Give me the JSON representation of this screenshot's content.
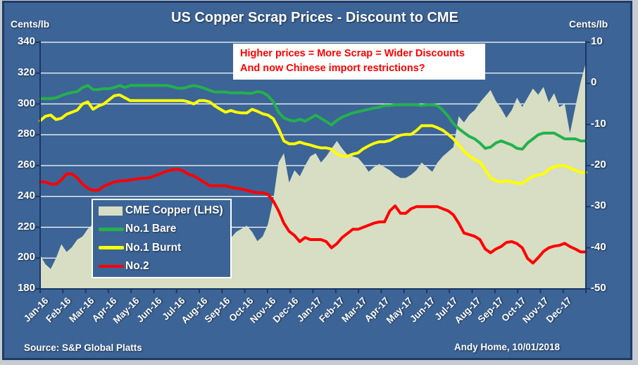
{
  "header": {
    "title": "US Copper Scrap Prices  - Discount to CME",
    "left_axis_unit": "Cents/lb",
    "right_axis_unit": "Cents/lb"
  },
  "annotation": {
    "line1": "Higher prices = More Scrap = Wider Discounts",
    "line2": "And now Chinese  import restrictions?",
    "text_color": "#FF0000"
  },
  "legend": {
    "items": [
      {
        "label": "CME Copper (LHS)",
        "type": "area",
        "color": "#D7DEC3"
      },
      {
        "label": "No.1 Bare",
        "type": "line",
        "color": "#23B14D"
      },
      {
        "label": "No.1 Burnt",
        "type": "line",
        "color": "#FFFF00"
      },
      {
        "label": "No.2",
        "type": "line",
        "color": "#FF0000"
      }
    ]
  },
  "footer": {
    "source": "Source:  S&P Global Platts",
    "credit": "Andy Home, 10/01/2018"
  },
  "colors": {
    "page_bg": "#C7CCD2",
    "frame": "#1F3B66",
    "plot_bg": "#3C6496",
    "gridline": "#FFFFFF",
    "axis_line": "#1B3766"
  },
  "chart_data": {
    "type": "area+line combo, weekly data Jan-2016 to Dec-2017",
    "categories": [
      "Jan-16",
      "Feb-16",
      "Mar-16",
      "Apr-16",
      "May-16",
      "Jun-16",
      "Jul-16",
      "Aug-16",
      "Sep-16",
      "Oct-16",
      "Nov-16",
      "Dec-16",
      "Jan-17",
      "Feb-17",
      "Mar-17",
      "Apr-17",
      "May-17",
      "Jun-17",
      "Jul-17",
      "Aug-17",
      "Sep-17",
      "Oct-17",
      "Nov-17",
      "Dec-17"
    ],
    "left_axis": {
      "label": "Cents/lb",
      "min": 180,
      "max": 340,
      "ticks": [
        180,
        200,
        220,
        240,
        260,
        280,
        300,
        320,
        340
      ]
    },
    "right_axis": {
      "label": "Cents/lb",
      "min": -50,
      "max": 10,
      "ticks": [
        -50,
        -40,
        -30,
        -20,
        -10,
        0,
        10
      ]
    },
    "grid": "horizontal white lines at left-axis ticks",
    "legend_position": "inside lower-left",
    "series": [
      {
        "name": "CME Copper (LHS)",
        "axis": "left",
        "type": "area",
        "color": "#D7DEC3",
        "values": [
          202,
          196,
          193,
          200,
          209,
          204,
          207,
          212,
          214,
          219,
          222,
          218,
          216,
          217,
          221,
          228,
          224,
          219,
          214,
          209,
          207,
          205,
          209,
          206,
          213,
          219,
          222,
          225,
          221,
          217,
          216,
          213,
          209,
          208,
          209,
          207,
          213,
          217,
          219,
          221,
          217,
          211,
          214,
          222,
          238,
          262,
          268,
          249,
          257,
          253,
          260,
          266,
          268,
          262,
          266,
          271,
          276,
          271,
          267,
          266,
          265,
          261,
          256,
          259,
          261,
          259,
          257,
          254,
          252,
          252,
          254,
          257,
          262,
          259,
          256,
          262,
          266,
          269,
          272,
          292,
          288,
          293,
          296,
          301,
          305,
          309,
          302,
          297,
          291,
          296,
          304,
          298,
          304,
          310,
          306,
          311,
          301,
          307,
          298,
          300,
          281,
          298,
          314,
          327
        ]
      },
      {
        "name": "No.1 Bare",
        "axis": "right",
        "type": "line",
        "color": "#23B14D",
        "values": [
          -3.7,
          -3.7,
          -3.7,
          -3.5,
          -3,
          -2.5,
          -2.2,
          -2,
          -1,
          -0.5,
          -1.5,
          -1.5,
          -1.3,
          -1.3,
          -1,
          -0.5,
          -1,
          -0.5,
          -0.5,
          -0.5,
          -0.5,
          -0.5,
          -0.5,
          -0.5,
          -0.5,
          -0.8,
          -1.2,
          -1.2,
          -0.8,
          -0.5,
          -0.8,
          -1.2,
          -1.7,
          -2.1,
          -2.1,
          -2.1,
          -2.3,
          -2.3,
          -2.3,
          -2.4,
          -2.4,
          -2,
          -2.2,
          -3,
          -4.5,
          -7,
          -8.4,
          -8.9,
          -9.2,
          -8.7,
          -9.2,
          -8.5,
          -7.7,
          -8.5,
          -9.3,
          -10.1,
          -9,
          -8.2,
          -7.7,
          -7.2,
          -6.9,
          -6.6,
          -6.3,
          -6,
          -5.8,
          -5.4,
          -5.4,
          -5.2,
          -5.2,
          -5.2,
          -5.2,
          -5.2,
          -5.4,
          -5.2,
          -5.2,
          -5.4,
          -6.5,
          -8,
          -9.8,
          -11,
          -12,
          -12.9,
          -13.5,
          -14.5,
          -15.8,
          -15.5,
          -14.5,
          -14,
          -14.5,
          -15,
          -15.8,
          -16,
          -14.5,
          -13.5,
          -12.5,
          -12.1,
          -12.1,
          -12.1,
          -12.8,
          -13.5,
          -13.5,
          -13.5,
          -14,
          -14
        ]
      },
      {
        "name": "No.1 Burnt",
        "axis": "right",
        "type": "line",
        "color": "#FFFF00",
        "values": [
          -9.1,
          -8,
          -7.7,
          -8.8,
          -8.5,
          -7.5,
          -7,
          -6.5,
          -5,
          -4.5,
          -6.3,
          -5.5,
          -5,
          -4,
          -3,
          -2.8,
          -3.5,
          -4.2,
          -4.2,
          -4.2,
          -4.2,
          -4.2,
          -4.2,
          -4.2,
          -4.2,
          -4.2,
          -4.2,
          -4.2,
          -4.5,
          -5,
          -4.2,
          -4.2,
          -4.5,
          -5.5,
          -6.3,
          -7,
          -6.6,
          -7,
          -7.2,
          -7.2,
          -6.3,
          -6.8,
          -7.4,
          -7.7,
          -8.6,
          -11,
          -14,
          -14.7,
          -14.7,
          -14.3,
          -14.7,
          -15,
          -15.4,
          -15.7,
          -15.7,
          -16,
          -17.2,
          -17.7,
          -17.7,
          -17.2,
          -16.9,
          -15.9,
          -15.2,
          -14.6,
          -14.2,
          -14.2,
          -13.9,
          -13.2,
          -12.6,
          -12.4,
          -12.4,
          -11.5,
          -10.3,
          -10.3,
          -10.3,
          -10.8,
          -11.4,
          -12.4,
          -13.5,
          -15,
          -16.5,
          -17.7,
          -18.5,
          -19.1,
          -21,
          -23,
          -23.7,
          -24,
          -23.7,
          -24,
          -24.3,
          -24.3,
          -23.4,
          -22.6,
          -22.3,
          -22,
          -20.9,
          -20.3,
          -20,
          -20,
          -20.6,
          -21.1,
          -21.7,
          -21.7
        ]
      },
      {
        "name": "No.2",
        "axis": "right",
        "type": "line",
        "color": "#FF0000",
        "values": [
          -24,
          -24,
          -24.5,
          -24.5,
          -23.5,
          -22,
          -22,
          -23,
          -24.5,
          -25.5,
          -26,
          -26,
          -25,
          -24.5,
          -24,
          -23.7,
          -23.7,
          -23.5,
          -23.3,
          -23.1,
          -23.1,
          -22.8,
          -22.3,
          -21.8,
          -21.3,
          -21,
          -20.9,
          -21.3,
          -22.1,
          -22.5,
          -23.3,
          -24.1,
          -24.9,
          -24.9,
          -24.9,
          -24.9,
          -25.3,
          -25.5,
          -25.7,
          -26,
          -26.4,
          -26.6,
          -26.6,
          -27,
          -28.6,
          -31,
          -34,
          -36,
          -37,
          -38.5,
          -37.5,
          -38,
          -38,
          -38,
          -38.5,
          -40,
          -39,
          -37.5,
          -36.5,
          -35.5,
          -35.5,
          -35,
          -34.5,
          -34,
          -33.7,
          -33.7,
          -31,
          -29.8,
          -31.6,
          -31.6,
          -30.5,
          -30,
          -30,
          -30,
          -30,
          -30,
          -30.5,
          -31,
          -32,
          -34,
          -36.4,
          -36.8,
          -37.2,
          -38,
          -40.3,
          -41.2,
          -40.3,
          -39.7,
          -38.7,
          -38.5,
          -39,
          -40,
          -42.6,
          -43.7,
          -42.4,
          -40.9,
          -40,
          -39.6,
          -39.4,
          -38.9,
          -39.7,
          -40.3,
          -41,
          -41
        ]
      }
    ]
  }
}
